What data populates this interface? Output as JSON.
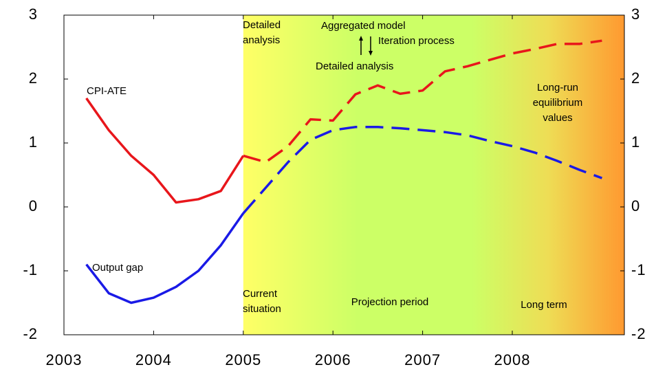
{
  "chart_data": {
    "type": "line",
    "x": [
      2003.25,
      2003.5,
      2003.75,
      2004.0,
      2004.25,
      2004.5,
      2004.75,
      2005.0,
      2005.25,
      2005.5,
      2005.75,
      2006.0,
      2006.25,
      2006.5,
      2006.75,
      2007.0,
      2007.25,
      2007.5,
      2007.75,
      2008.0,
      2008.25,
      2008.5,
      2008.75,
      2009.0
    ],
    "series": [
      {
        "name": "CPI-ATE",
        "color": "#e8161b",
        "values": [
          1.7,
          1.2,
          0.8,
          0.5,
          0.07,
          0.12,
          0.25,
          0.8,
          0.7,
          0.95,
          1.37,
          1.35,
          1.76,
          1.9,
          1.77,
          1.82,
          2.12,
          2.2,
          2.3,
          2.4,
          2.47,
          2.55,
          2.55,
          2.6
        ]
      },
      {
        "name": "Output gap",
        "color": "#1a1ae6",
        "values": [
          -0.9,
          -1.35,
          -1.5,
          -1.42,
          -1.25,
          -1.0,
          -0.6,
          -0.1,
          0.3,
          0.7,
          1.05,
          1.2,
          1.25,
          1.25,
          1.23,
          1.2,
          1.17,
          1.12,
          1.03,
          0.95,
          0.85,
          0.72,
          0.58,
          0.45
        ]
      }
    ],
    "dashed_from": 2005,
    "shade_from": 2005,
    "hlines": [
      {
        "value": 0,
        "color": "#000000"
      },
      {
        "value": 2.5,
        "color": "#999999"
      }
    ],
    "xlim": [
      2003,
      2009.25
    ],
    "xticks": [
      2003,
      2004,
      2005,
      2006,
      2007,
      2008
    ],
    "ylim": [
      -2,
      3
    ],
    "yticks": [
      -2,
      -1,
      0,
      1,
      2,
      3
    ],
    "y2lim": [
      -2,
      3
    ],
    "y2ticks": [
      -2,
      -1,
      0,
      1,
      2,
      3
    ],
    "annotations": [
      [
        "Detailed",
        "analysis"
      ],
      [
        "Aggregated model"
      ],
      [
        "Iteration process"
      ],
      [
        "Detailed analysis"
      ],
      [
        "Long-run",
        "equilibrium",
        "values"
      ],
      [
        "Current",
        "situation"
      ],
      [
        "Projection period"
      ],
      [
        "Long term"
      ]
    ]
  }
}
